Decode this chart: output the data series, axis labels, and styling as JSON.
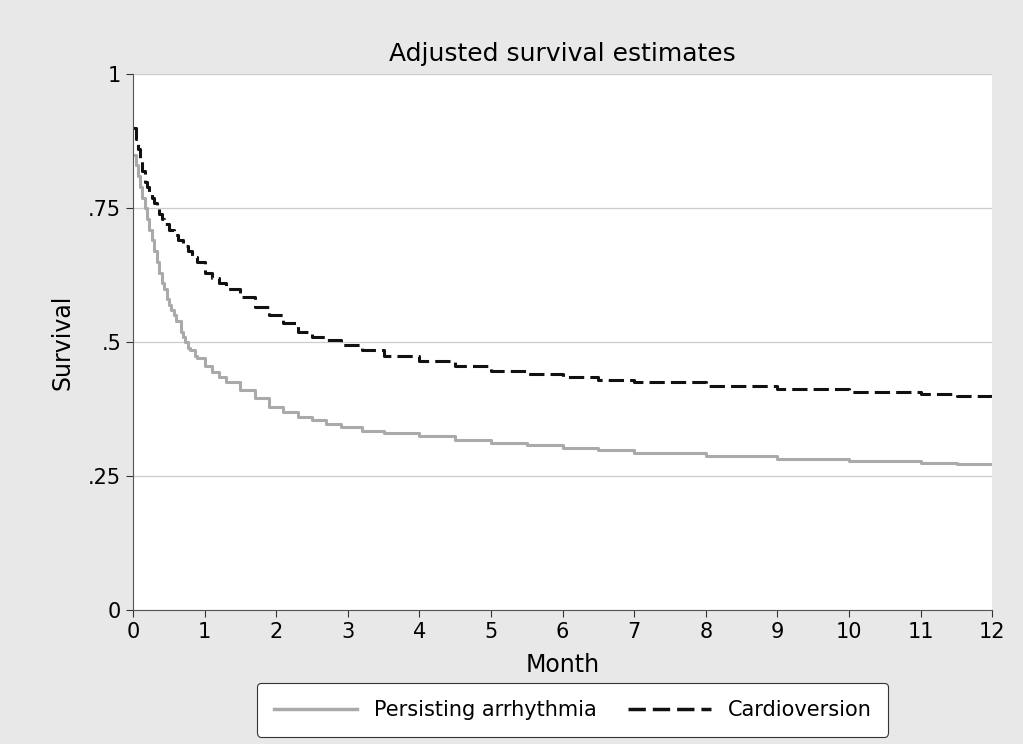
{
  "title": "Adjusted survival estimates",
  "xlabel": "Month",
  "ylabel": "Survival",
  "xlim": [
    0,
    12
  ],
  "ylim": [
    0,
    1
  ],
  "yticks": [
    0,
    0.25,
    0.5,
    0.75,
    1.0
  ],
  "ytick_labels": [
    "0",
    ".25",
    ".5",
    ".75",
    "1"
  ],
  "xticks": [
    0,
    1,
    2,
    3,
    4,
    5,
    6,
    7,
    8,
    9,
    10,
    11,
    12
  ],
  "background_color": "#e8e8e8",
  "plot_bg_color": "#ffffff",
  "grid_color": "#cccccc",
  "persisting_color": "#aaaaaa",
  "cardio_color": "#111111",
  "persisting_x": [
    0,
    0.04,
    0.07,
    0.1,
    0.13,
    0.17,
    0.2,
    0.23,
    0.27,
    0.3,
    0.33,
    0.37,
    0.4,
    0.43,
    0.47,
    0.5,
    0.53,
    0.57,
    0.6,
    0.67,
    0.7,
    0.73,
    0.77,
    0.8,
    0.87,
    0.9,
    1.0,
    1.1,
    1.2,
    1.3,
    1.5,
    1.7,
    1.9,
    2.1,
    2.3,
    2.5,
    2.7,
    2.9,
    3.2,
    3.5,
    4.0,
    4.5,
    5.0,
    5.5,
    6.0,
    6.5,
    7.0,
    8.0,
    9.0,
    10.0,
    11.0,
    11.5,
    12.0
  ],
  "persisting_y": [
    0.85,
    0.83,
    0.81,
    0.79,
    0.77,
    0.75,
    0.73,
    0.71,
    0.69,
    0.67,
    0.65,
    0.63,
    0.61,
    0.6,
    0.58,
    0.57,
    0.56,
    0.55,
    0.54,
    0.52,
    0.51,
    0.5,
    0.49,
    0.485,
    0.475,
    0.47,
    0.455,
    0.445,
    0.435,
    0.425,
    0.41,
    0.395,
    0.38,
    0.37,
    0.36,
    0.355,
    0.348,
    0.342,
    0.335,
    0.33,
    0.325,
    0.318,
    0.312,
    0.308,
    0.302,
    0.298,
    0.293,
    0.287,
    0.282,
    0.278,
    0.275,
    0.273,
    0.271
  ],
  "cardio_x": [
    0,
    0.04,
    0.07,
    0.1,
    0.13,
    0.17,
    0.2,
    0.23,
    0.27,
    0.3,
    0.33,
    0.37,
    0.4,
    0.43,
    0.5,
    0.57,
    0.63,
    0.7,
    0.77,
    0.83,
    0.9,
    1.0,
    1.1,
    1.2,
    1.3,
    1.5,
    1.7,
    1.9,
    2.1,
    2.3,
    2.5,
    2.7,
    2.9,
    3.2,
    3.5,
    4.0,
    4.5,
    5.0,
    5.5,
    6.0,
    6.5,
    7.0,
    8.0,
    9.0,
    10.0,
    11.0,
    11.5,
    12.0
  ],
  "cardio_y": [
    0.9,
    0.88,
    0.86,
    0.84,
    0.82,
    0.8,
    0.79,
    0.78,
    0.77,
    0.76,
    0.75,
    0.74,
    0.73,
    0.72,
    0.71,
    0.7,
    0.69,
    0.68,
    0.67,
    0.66,
    0.65,
    0.63,
    0.62,
    0.61,
    0.6,
    0.585,
    0.565,
    0.55,
    0.535,
    0.52,
    0.51,
    0.505,
    0.495,
    0.485,
    0.475,
    0.465,
    0.455,
    0.447,
    0.44,
    0.435,
    0.43,
    0.425,
    0.418,
    0.413,
    0.408,
    0.403,
    0.4,
    0.397
  ]
}
